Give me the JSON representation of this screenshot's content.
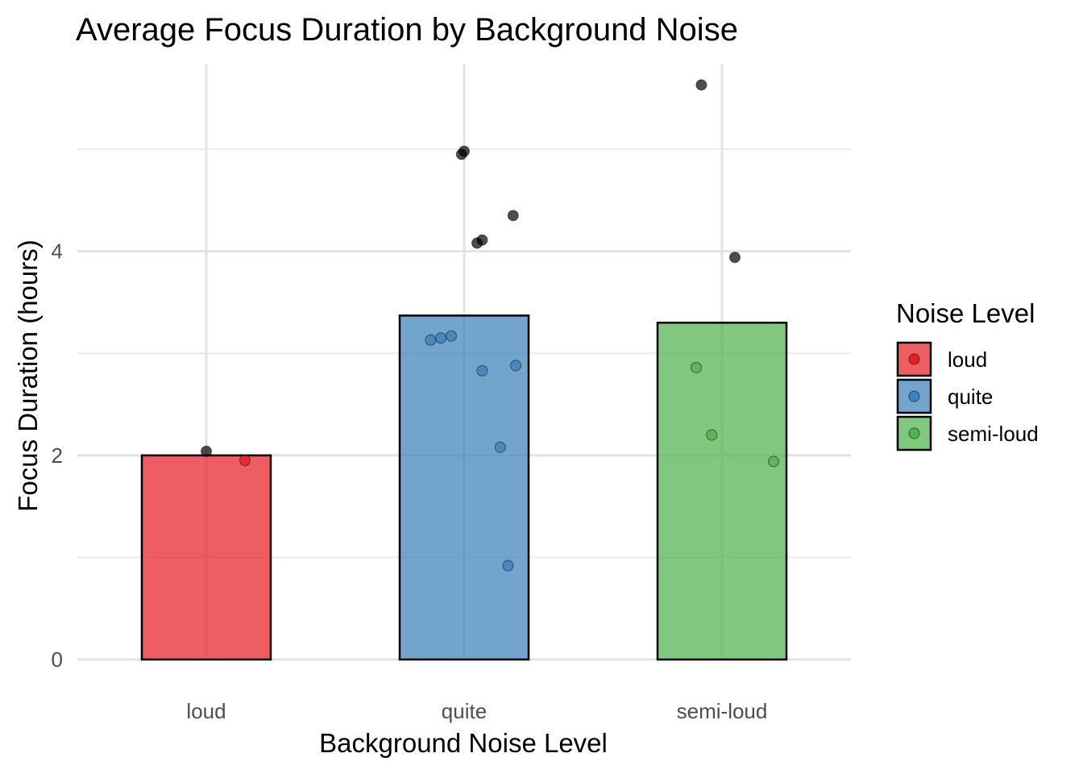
{
  "chart_data": {
    "type": "bar",
    "title": "Average Focus Duration by Background Noise",
    "xlabel": "Background Noise Level",
    "ylabel": "Focus Duration (hours)",
    "categories": [
      "loud",
      "quite",
      "semi-loud"
    ],
    "values": [
      2.0,
      3.37,
      3.3
    ],
    "colors": [
      "#E41A1C",
      "#377EB8",
      "#4DAF4A"
    ],
    "ylim": [
      0,
      5.83
    ],
    "yticks": [
      0,
      2,
      4
    ],
    "yticks_minor": [
      1,
      3,
      5
    ],
    "grid": true,
    "legend": {
      "title": "Noise Level",
      "position": "right",
      "items": [
        "loud",
        "quite",
        "semi-loud"
      ]
    },
    "points": [
      {
        "category": "loud",
        "x_offset": 0.0,
        "y": 2.04,
        "color": "#000000"
      },
      {
        "category": "loud",
        "x_offset": 0.15,
        "y": 1.95,
        "color": "#E41A1C"
      },
      {
        "category": "quite",
        "x_offset": -0.01,
        "y": 4.95,
        "color": "#000000"
      },
      {
        "category": "quite",
        "x_offset": 0.0,
        "y": 4.98,
        "color": "#000000"
      },
      {
        "category": "quite",
        "x_offset": 0.19,
        "y": 4.35,
        "color": "#000000"
      },
      {
        "category": "quite",
        "x_offset": 0.05,
        "y": 4.08,
        "color": "#000000"
      },
      {
        "category": "quite",
        "x_offset": 0.07,
        "y": 4.11,
        "color": "#000000"
      },
      {
        "category": "quite",
        "x_offset": -0.13,
        "y": 3.13,
        "color": "#377EB8"
      },
      {
        "category": "quite",
        "x_offset": -0.09,
        "y": 3.15,
        "color": "#377EB8"
      },
      {
        "category": "quite",
        "x_offset": -0.05,
        "y": 3.17,
        "color": "#377EB8"
      },
      {
        "category": "quite",
        "x_offset": 0.2,
        "y": 2.88,
        "color": "#377EB8"
      },
      {
        "category": "quite",
        "x_offset": 0.07,
        "y": 2.83,
        "color": "#377EB8"
      },
      {
        "category": "quite",
        "x_offset": 0.14,
        "y": 2.08,
        "color": "#377EB8"
      },
      {
        "category": "quite",
        "x_offset": 0.17,
        "y": 0.92,
        "color": "#377EB8"
      },
      {
        "category": "semi-loud",
        "x_offset": -0.08,
        "y": 5.63,
        "color": "#000000"
      },
      {
        "category": "semi-loud",
        "x_offset": 0.05,
        "y": 3.94,
        "color": "#000000"
      },
      {
        "category": "semi-loud",
        "x_offset": -0.1,
        "y": 2.86,
        "color": "#4DAF4A"
      },
      {
        "category": "semi-loud",
        "x_offset": -0.04,
        "y": 2.2,
        "color": "#4DAF4A"
      },
      {
        "category": "semi-loud",
        "x_offset": 0.2,
        "y": 1.94,
        "color": "#4DAF4A"
      }
    ]
  }
}
